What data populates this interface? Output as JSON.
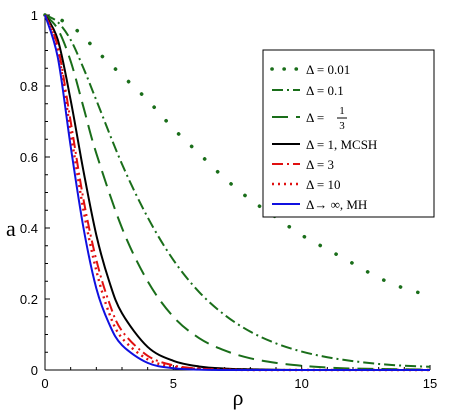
{
  "chart_data": {
    "type": "line",
    "title": "",
    "xlabel": "ρ",
    "ylabel": "a",
    "xlim": [
      0,
      15
    ],
    "ylim": [
      0,
      1
    ],
    "x_ticks": [
      "0",
      "5",
      "10",
      "15"
    ],
    "y_ticks": [
      "0",
      "0.2",
      "0.4",
      "0.6",
      "0.8",
      "1"
    ],
    "grid": false,
    "legend_position": "top-right",
    "series": [
      {
        "name": "Δ = 0.01",
        "color": "#1a6e1a",
        "style": "dotted-sparse",
        "x": [
          0,
          0.5,
          1,
          1.5,
          2,
          3,
          4,
          5,
          6,
          7,
          8,
          9,
          10,
          11,
          12,
          13,
          14,
          15
        ],
        "y": [
          1.0,
          0.99,
          0.97,
          0.94,
          0.9,
          0.83,
          0.76,
          0.68,
          0.61,
          0.54,
          0.48,
          0.43,
          0.38,
          0.34,
          0.3,
          0.26,
          0.23,
          0.21
        ]
      },
      {
        "name": "Δ = 0.1",
        "color": "#1a6e1a",
        "style": "dashdot",
        "x": [
          0,
          0.5,
          1,
          1.5,
          2,
          3,
          4,
          5,
          6,
          7,
          8,
          9,
          10,
          11,
          12,
          13,
          14,
          15
        ],
        "y": [
          1.0,
          0.98,
          0.93,
          0.85,
          0.76,
          0.58,
          0.43,
          0.31,
          0.22,
          0.155,
          0.108,
          0.075,
          0.052,
          0.036,
          0.025,
          0.017,
          0.012,
          0.009
        ]
      },
      {
        "name": "Δ = 1/3",
        "color": "#1a6e1a",
        "style": "longdash",
        "x": [
          0,
          0.5,
          1,
          1.5,
          2,
          3,
          4,
          5,
          6,
          7,
          8,
          9,
          10,
          11,
          12,
          13,
          14,
          15
        ],
        "y": [
          1.0,
          0.96,
          0.87,
          0.74,
          0.61,
          0.4,
          0.25,
          0.15,
          0.09,
          0.055,
          0.033,
          0.02,
          0.012,
          0.007,
          0.004,
          0.003,
          0.002,
          0.001
        ]
      },
      {
        "name": "Δ = 1, MCSH",
        "color": "#000000",
        "style": "solid",
        "x": [
          0,
          0.5,
          1,
          1.5,
          2,
          2.5,
          3,
          4,
          5,
          6,
          7,
          8,
          10,
          12,
          15
        ],
        "y": [
          1.0,
          0.93,
          0.76,
          0.56,
          0.38,
          0.25,
          0.16,
          0.065,
          0.026,
          0.01,
          0.004,
          0.002,
          0.0,
          0.0,
          0.0
        ]
      },
      {
        "name": "Δ = 3",
        "color": "#e01010",
        "style": "dashdot",
        "x": [
          0,
          0.5,
          1,
          1.5,
          2,
          2.5,
          3,
          4,
          5,
          6,
          7,
          8,
          10,
          12,
          15
        ],
        "y": [
          1.0,
          0.91,
          0.7,
          0.48,
          0.31,
          0.19,
          0.11,
          0.04,
          0.013,
          0.004,
          0.001,
          0.0,
          0.0,
          0.0,
          0.0
        ]
      },
      {
        "name": "Δ = 10",
        "color": "#e01010",
        "style": "dotted",
        "x": [
          0,
          0.5,
          1,
          1.5,
          2,
          2.5,
          3,
          4,
          5,
          6,
          7,
          8,
          10,
          12,
          15
        ],
        "y": [
          1.0,
          0.9,
          0.67,
          0.45,
          0.28,
          0.16,
          0.09,
          0.03,
          0.009,
          0.003,
          0.001,
          0.0,
          0.0,
          0.0,
          0.0
        ]
      },
      {
        "name": "Δ→ ∞, MH",
        "color": "#1010e0",
        "style": "solid",
        "x": [
          0,
          0.5,
          1,
          1.5,
          2,
          2.5,
          3,
          4,
          5,
          6,
          7,
          8,
          10,
          12,
          15
        ],
        "y": [
          1.0,
          0.88,
          0.63,
          0.4,
          0.23,
          0.13,
          0.07,
          0.02,
          0.005,
          0.001,
          0.0,
          0.0,
          0.0,
          0.0,
          0.0
        ]
      }
    ]
  }
}
